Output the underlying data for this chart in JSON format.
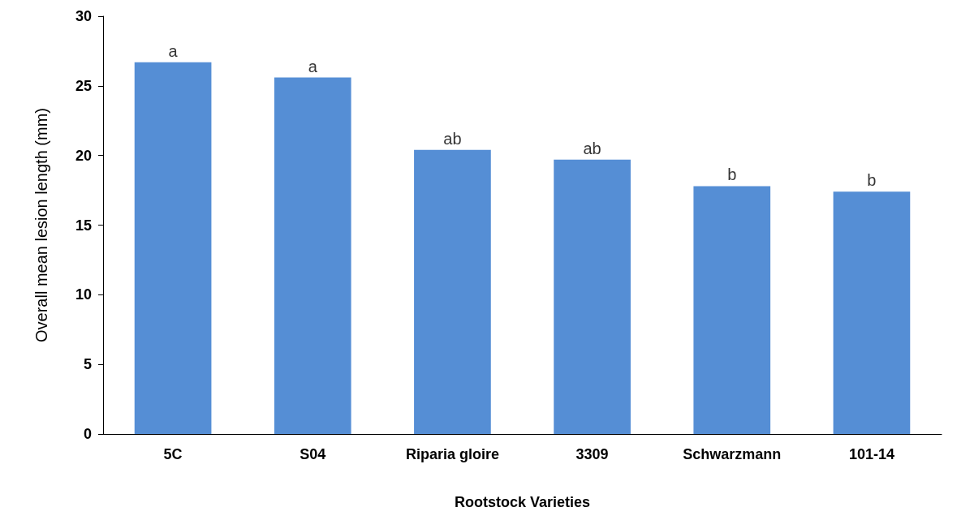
{
  "chart_data": {
    "type": "bar",
    "xlabel": "Rootstock Varieties",
    "ylabel": "Overall mean lesion length (mm)",
    "categories": [
      "5C",
      "S04",
      "Riparia gloire",
      "3309",
      "Schwarzmann",
      "101-14"
    ],
    "values": [
      26.7,
      25.6,
      20.4,
      19.7,
      17.8,
      17.4
    ],
    "color": "#558ed5",
    "ylim": [
      0,
      30
    ],
    "yticks": [
      0,
      5,
      10,
      15,
      20,
      25,
      30
    ],
    "grid": false,
    "annotations": [
      {
        "text": "a",
        "x": "5C",
        "y": 26.7
      },
      {
        "text": "a",
        "x": "S04",
        "y": 25.6
      },
      {
        "text": "ab",
        "x": "Riparia gloire",
        "y": 20.4
      },
      {
        "text": "ab",
        "x": "3309",
        "y": 19.7
      },
      {
        "text": "b",
        "x": "Schwarzmann",
        "y": 17.8
      },
      {
        "text": "b",
        "x": "101-14",
        "y": 17.4
      }
    ]
  }
}
